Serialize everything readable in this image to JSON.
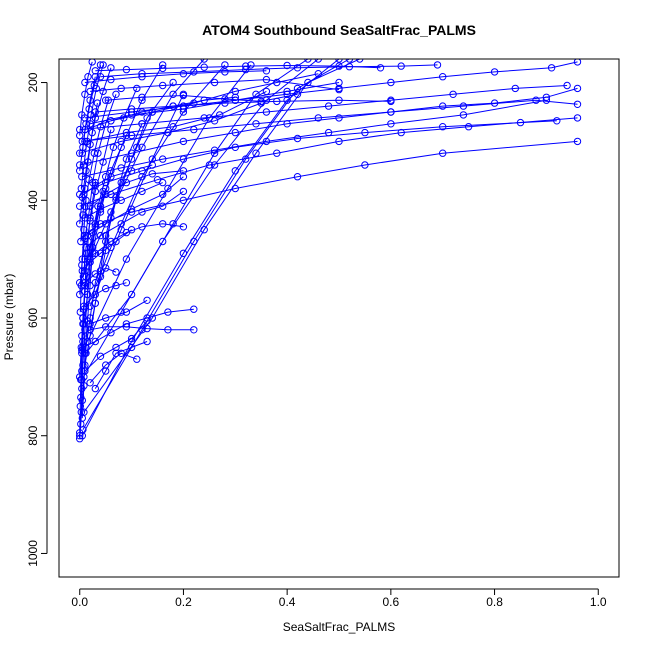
{
  "chart_data": {
    "type": "line",
    "title": "ATOM4 Southbound SeaSaltFrac_PALMS",
    "xlabel": "SeaSaltFrac_PALMS",
    "ylabel": "Pressure (mbar)",
    "xlim": [
      -0.04,
      1.04
    ],
    "ylim": [
      1040,
      160
    ],
    "y_reversed": true,
    "grid": false,
    "x_ticks": [
      {
        "value": 0.0,
        "label": "0.0"
      },
      {
        "value": 0.2,
        "label": "0.2"
      },
      {
        "value": 0.4,
        "label": "0.4"
      },
      {
        "value": 0.6,
        "label": "0.6"
      },
      {
        "value": 0.8,
        "label": "0.8"
      },
      {
        "value": 1.0,
        "label": "1.0"
      }
    ],
    "y_ticks": [
      {
        "value": 200,
        "label": "200"
      },
      {
        "value": 400,
        "label": "400"
      },
      {
        "value": 600,
        "label": "600"
      },
      {
        "value": 800,
        "label": "800"
      },
      {
        "value": 1000,
        "label": "1000"
      }
    ],
    "colors": {
      "series": "#0000ff",
      "axis": "#000000"
    },
    "series": [
      {
        "x": [
          0.0,
          0.002,
          0.005,
          0.008,
          0.012,
          0.02,
          0.03,
          0.05,
          0.07,
          0.1,
          0.13,
          0.18
        ],
        "y": [
          805,
          780,
          740,
          700,
          650,
          600,
          540,
          470,
          400,
          330,
          260,
          200
        ]
      },
      {
        "x": [
          0.0,
          0.003,
          0.004,
          0.006,
          0.01,
          0.015,
          0.025,
          0.04,
          0.06,
          0.09
        ],
        "y": [
          800,
          760,
          720,
          680,
          620,
          560,
          490,
          420,
          350,
          290
        ]
      },
      {
        "x": [
          0.0,
          0.001,
          0.002,
          0.004,
          0.006,
          0.01,
          0.02,
          0.03,
          0.05
        ],
        "y": [
          795,
          750,
          705,
          655,
          610,
          555,
          500,
          440,
          380
        ]
      },
      {
        "x": [
          0.005,
          0.008,
          0.01,
          0.015,
          0.02,
          0.025,
          0.035
        ],
        "y": [
          770,
          715,
          660,
          605,
          545,
          480,
          410
        ]
      },
      {
        "x": [
          0.002,
          0.004,
          0.006,
          0.008,
          0.012,
          0.016
        ],
        "y": [
          735,
          690,
          640,
          585,
          530,
          470
        ]
      },
      {
        "x": [
          0.0,
          0.003,
          0.006,
          0.01,
          0.014,
          0.02,
          0.03
        ],
        "y": [
          700,
          650,
          600,
          545,
          490,
          430,
          370
        ]
      },
      {
        "x": [
          0.01,
          0.02,
          0.03,
          0.04,
          0.05,
          0.07,
          0.09,
          0.12
        ],
        "y": [
          680,
          630,
          575,
          520,
          460,
          395,
          330,
          270
        ]
      },
      {
        "x": [
          0.004,
          0.008,
          0.015,
          0.02,
          0.03,
          0.045
        ],
        "y": [
          660,
          610,
          560,
          505,
          445,
          385
        ]
      },
      {
        "x": [
          0.02,
          0.03,
          0.04,
          0.05,
          0.06,
          0.08,
          0.11,
          0.14
        ],
        "y": [
          620,
          575,
          530,
          485,
          430,
          370,
          310,
          250
        ]
      },
      {
        "x": [
          0.001,
          0.003,
          0.005,
          0.008,
          0.012
        ],
        "y": [
          590,
          545,
          500,
          450,
          400
        ]
      },
      {
        "x": [
          0.0,
          0.004,
          0.01,
          0.018,
          0.025,
          0.035,
          0.05,
          0.07
        ],
        "y": [
          560,
          510,
          465,
          420,
          370,
          320,
          270,
          220
        ]
      },
      {
        "x": [
          0.007,
          0.012,
          0.02,
          0.03,
          0.045,
          0.06
        ],
        "y": [
          530,
          480,
          435,
          385,
          335,
          280
        ]
      },
      {
        "x": [
          0.015,
          0.025,
          0.035,
          0.05,
          0.065,
          0.085,
          0.11
        ],
        "y": [
          500,
          455,
          410,
          360,
          310,
          260,
          210
        ]
      },
      {
        "x": [
          0.002,
          0.006,
          0.01,
          0.016,
          0.024,
          0.034
        ],
        "y": [
          470,
          425,
          380,
          335,
          285,
          235
        ]
      },
      {
        "x": [
          0.0,
          0.005,
          0.012,
          0.02,
          0.03,
          0.045,
          0.06
        ],
        "y": [
          440,
          395,
          350,
          305,
          260,
          215,
          175
        ]
      },
      {
        "x": [
          0.01,
          0.018,
          0.028,
          0.04,
          0.055
        ],
        "y": [
          410,
          365,
          320,
          275,
          230
        ]
      },
      {
        "x": [
          0.003,
          0.008,
          0.014,
          0.022,
          0.032,
          0.045
        ],
        "y": [
          380,
          340,
          300,
          255,
          210,
          170
        ]
      },
      {
        "x": [
          0.0,
          0.006,
          0.012,
          0.02,
          0.03
        ],
        "y": [
          350,
          310,
          270,
          230,
          190
        ]
      },
      {
        "x": [
          0.005,
          0.01,
          0.018,
          0.028,
          0.04
        ],
        "y": [
          320,
          280,
          245,
          205,
          170
        ]
      },
      {
        "x": [
          0.0,
          0.004,
          0.01,
          0.016,
          0.024
        ],
        "y": [
          290,
          255,
          220,
          190,
          165
        ]
      },
      {
        "x": [
          0.03,
          0.05,
          0.07,
          0.1,
          0.13
        ],
        "y": [
          720,
          690,
          660,
          650,
          640
        ]
      },
      {
        "x": [
          0.02,
          0.05,
          0.08,
          0.11
        ],
        "y": [
          710,
          680,
          660,
          670
        ]
      },
      {
        "x": [
          0.01,
          0.04,
          0.07,
          0.1,
          0.13
        ],
        "y": [
          690,
          665,
          650,
          635,
          605
        ]
      },
      {
        "x": [
          0.006,
          0.03,
          0.06,
          0.09,
          0.13,
          0.17,
          0.22
        ],
        "y": [
          650,
          640,
          625,
          610,
          600,
          590,
          585
        ]
      },
      {
        "x": [
          0.004,
          0.02,
          0.05,
          0.09,
          0.13,
          0.17,
          0.22
        ],
        "y": [
          630,
          620,
          615,
          615,
          618,
          620,
          620
        ]
      },
      {
        "x": [
          0.02,
          0.05,
          0.09,
          0.13
        ],
        "y": [
          610,
          600,
          590,
          570
        ]
      },
      {
        "x": [
          0.008,
          0.03,
          0.05,
          0.07,
          0.09
        ],
        "y": [
          580,
          560,
          550,
          545,
          540
        ]
      },
      {
        "x": [
          0.01,
          0.03,
          0.05,
          0.07
        ],
        "y": [
          540,
          525,
          515,
          522
        ]
      },
      {
        "x": [
          0.005,
          0.02,
          0.04,
          0.07,
          0.1
        ],
        "y": [
          520,
          505,
          490,
          470,
          450
        ]
      },
      {
        "x": [
          0.01,
          0.03,
          0.06,
          0.09,
          0.12,
          0.16,
          0.2
        ],
        "y": [
          500,
          490,
          470,
          455,
          445,
          440,
          445
        ]
      },
      {
        "x": [
          0.012,
          0.04,
          0.08,
          0.12,
          0.16,
          0.2
        ],
        "y": [
          480,
          460,
          440,
          420,
          410,
          385
        ]
      },
      {
        "x": [
          0.015,
          0.05,
          0.1,
          0.16,
          0.2
        ],
        "y": [
          460,
          440,
          415,
          390,
          360
        ]
      },
      {
        "x": [
          0.01,
          0.04,
          0.08,
          0.12,
          0.16
        ],
        "y": [
          430,
          415,
          400,
          385,
          370
        ]
      },
      {
        "x": [
          0.02,
          0.05,
          0.09,
          0.14,
          0.2
        ],
        "y": [
          410,
          390,
          370,
          355,
          350
        ]
      },
      {
        "x": [
          0.008,
          0.03,
          0.06,
          0.1,
          0.14
        ],
        "y": [
          390,
          375,
          360,
          350,
          340
        ]
      },
      {
        "x": [
          0.01,
          0.04,
          0.1,
          0.2,
          0.3,
          0.42,
          0.55,
          0.7,
          0.96
        ],
        "y": [
          460,
          440,
          420,
          400,
          380,
          360,
          340,
          320,
          300
        ]
      },
      {
        "x": [
          0.0,
          0.06,
          0.15,
          0.25,
          0.38,
          0.5,
          0.62,
          0.75,
          0.96
        ],
        "y": [
          410,
          390,
          365,
          340,
          320,
          300,
          285,
          275,
          260
        ]
      },
      {
        "x": [
          0.0,
          0.05,
          0.12,
          0.2,
          0.3,
          0.42,
          0.55,
          0.7,
          0.85,
          0.92
        ],
        "y": [
          390,
          370,
          350,
          330,
          310,
          295,
          285,
          275,
          268,
          265
        ]
      },
      {
        "x": [
          0.004,
          0.08,
          0.16,
          0.26,
          0.36,
          0.48,
          0.6,
          0.74,
          0.9
        ],
        "y": [
          360,
          345,
          330,
          315,
          300,
          285,
          270,
          255,
          230
        ]
      },
      {
        "x": [
          0.0,
          0.1,
          0.2,
          0.3,
          0.4,
          0.5,
          0.6,
          0.7,
          0.8,
          0.9,
          0.96
        ],
        "y": [
          340,
          320,
          300,
          285,
          270,
          260,
          250,
          240,
          235,
          225,
          210
        ]
      },
      {
        "x": [
          0.005,
          0.1,
          0.22,
          0.34,
          0.46,
          0.6,
          0.74,
          0.88,
          0.96
        ],
        "y": [
          300,
          290,
          280,
          270,
          260,
          250,
          240,
          230,
          237
        ]
      },
      {
        "x": [
          0.0,
          0.12,
          0.24,
          0.36,
          0.48,
          0.6,
          0.72,
          0.84,
          0.94
        ],
        "y": [
          280,
          270,
          260,
          250,
          240,
          230,
          220,
          210,
          205
        ]
      },
      {
        "x": [
          0.01,
          0.1,
          0.2,
          0.3,
          0.4,
          0.5,
          0.6,
          0.7,
          0.8,
          0.91,
          0.96
        ],
        "y": [
          260,
          250,
          240,
          230,
          220,
          210,
          200,
          190,
          182,
          175,
          165
        ]
      },
      {
        "x": [
          0.03,
          0.1,
          0.18,
          0.28,
          0.38,
          0.5,
          0.6
        ],
        "y": [
          250,
          245,
          240,
          235,
          232,
          230,
          232
        ]
      },
      {
        "x": [
          0.05,
          0.12,
          0.2,
          0.28,
          0.35,
          0.42
        ],
        "y": [
          230,
          225,
          222,
          228,
          232,
          220
        ]
      },
      {
        "x": [
          0.02,
          0.08,
          0.16,
          0.26,
          0.36,
          0.5
        ],
        "y": [
          215,
          210,
          205,
          200,
          195,
          212
        ]
      },
      {
        "x": [
          0.01,
          0.06,
          0.12,
          0.2,
          0.28,
          0.36
        ],
        "y": [
          200,
          195,
          190,
          185,
          182,
          180
        ]
      },
      {
        "x": [
          0.04,
          0.12,
          0.22,
          0.32,
          0.42,
          0.52,
          0.62,
          0.69
        ],
        "y": [
          190,
          185,
          182,
          178,
          175,
          173,
          172,
          170
        ]
      },
      {
        "x": [
          0.03,
          0.09,
          0.16,
          0.24,
          0.32,
          0.4,
          0.5,
          0.58
        ],
        "y": [
          180,
          178,
          176,
          174,
          172,
          171,
          172,
          175
        ]
      },
      {
        "x": [
          0.0,
          0.08,
          0.17,
          0.26,
          0.35
        ],
        "y": [
          320,
          300,
          285,
          265,
          235
        ]
      },
      {
        "x": [
          0.01,
          0.09,
          0.18,
          0.27,
          0.36
        ],
        "y": [
          300,
          285,
          275,
          255,
          215
        ]
      },
      {
        "x": [
          0.01,
          0.06,
          0.12,
          0.18,
          0.24,
          0.3
        ],
        "y": [
          280,
          265,
          250,
          240,
          230,
          225
        ]
      },
      {
        "x": [
          0.02,
          0.1,
          0.2,
          0.3,
          0.4,
          0.5
        ],
        "y": [
          270,
          255,
          245,
          230,
          215,
          200
        ]
      },
      {
        "x": [
          0.06,
          0.14,
          0.22,
          0.3,
          0.38,
          0.46
        ],
        "y": [
          265,
          250,
          235,
          215,
          200,
          185
        ]
      },
      {
        "x": [
          0.005,
          0.1,
          0.2,
          0.3,
          0.4,
          0.5
        ],
        "y": [
          800,
          640,
          490,
          350,
          230,
          160
        ]
      },
      {
        "x": [
          0.006,
          0.12,
          0.22,
          0.32,
          0.42,
          0.52
        ],
        "y": [
          790,
          620,
          470,
          330,
          210,
          160
        ]
      },
      {
        "x": [
          0.008,
          0.14,
          0.24,
          0.34,
          0.44,
          0.54
        ],
        "y": [
          760,
          600,
          450,
          320,
          200,
          160
        ]
      },
      {
        "x": [
          0.004,
          0.08,
          0.16,
          0.26,
          0.36,
          0.46
        ],
        "y": [
          705,
          590,
          470,
          340,
          230,
          160
        ]
      },
      {
        "x": [
          0.012,
          0.1,
          0.18,
          0.26,
          0.34,
          0.44
        ],
        "y": [
          660,
          560,
          440,
          320,
          220,
          160
        ]
      },
      {
        "x": [
          0.015,
          0.09,
          0.17,
          0.25,
          0.33
        ],
        "y": [
          640,
          500,
          380,
          260,
          170
        ]
      },
      {
        "x": [
          0.006,
          0.06,
          0.12,
          0.2,
          0.28
        ],
        "y": [
          600,
          480,
          360,
          250,
          170
        ]
      },
      {
        "x": [
          0.02,
          0.08,
          0.14,
          0.2
        ],
        "y": [
          580,
          450,
          330,
          220
        ]
      },
      {
        "x": [
          0.0,
          0.06,
          0.12,
          0.18,
          0.24
        ],
        "y": [
          540,
          420,
          310,
          220,
          160
        ]
      },
      {
        "x": [
          0.01,
          0.04,
          0.08,
          0.12,
          0.16
        ],
        "y": [
          520,
          410,
          310,
          230,
          170
        ]
      }
    ]
  }
}
